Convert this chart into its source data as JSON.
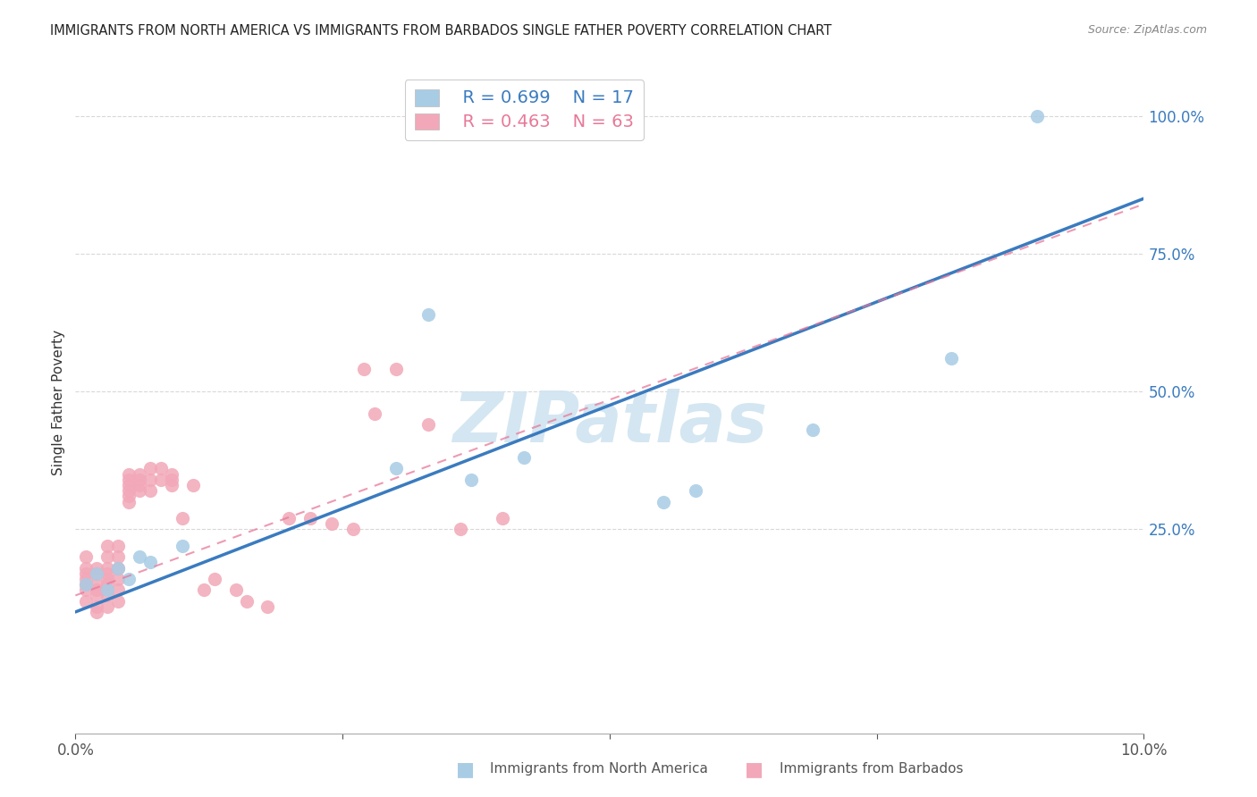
{
  "title": "IMMIGRANTS FROM NORTH AMERICA VS IMMIGRANTS FROM BARBADOS SINGLE FATHER POVERTY CORRELATION CHART",
  "source": "Source: ZipAtlas.com",
  "xlabel_blue": "Immigrants from North America",
  "xlabel_pink": "Immigrants from Barbados",
  "ylabel": "Single Father Poverty",
  "xlim": [
    0.0,
    0.1
  ],
  "ylim": [
    -0.12,
    1.08
  ],
  "xticks": [
    0.0,
    0.025,
    0.05,
    0.075,
    0.1
  ],
  "ytick_positions": [
    0.25,
    0.5,
    0.75,
    1.0
  ],
  "ytick_labels": [
    "25.0%",
    "50.0%",
    "75.0%",
    "100.0%"
  ],
  "legend_r_blue": "R = 0.699",
  "legend_n_blue": "N = 17",
  "legend_r_pink": "R = 0.463",
  "legend_n_pink": "N = 63",
  "blue_scatter_color": "#a8cce4",
  "pink_scatter_color": "#f2a8b8",
  "blue_line_color": "#3a7bbf",
  "pink_line_color": "#e87898",
  "watermark_color": "#d0e4f0",
  "watermark": "ZIPatlas",
  "background_color": "#ffffff",
  "grid_color": "#d8d8d8",
  "blue_points_x": [
    0.001,
    0.002,
    0.003,
    0.004,
    0.005,
    0.006,
    0.007,
    0.01,
    0.03,
    0.033,
    0.037,
    0.042,
    0.055,
    0.058,
    0.069,
    0.082,
    0.09
  ],
  "blue_points_y": [
    0.15,
    0.17,
    0.14,
    0.18,
    0.16,
    0.2,
    0.19,
    0.22,
    0.36,
    0.64,
    0.34,
    0.38,
    0.3,
    0.32,
    0.43,
    0.56,
    1.0
  ],
  "pink_points_x": [
    0.001,
    0.001,
    0.001,
    0.001,
    0.001,
    0.001,
    0.001,
    0.002,
    0.002,
    0.002,
    0.002,
    0.002,
    0.002,
    0.002,
    0.003,
    0.003,
    0.003,
    0.003,
    0.003,
    0.003,
    0.003,
    0.003,
    0.004,
    0.004,
    0.004,
    0.004,
    0.004,
    0.004,
    0.005,
    0.005,
    0.005,
    0.005,
    0.005,
    0.005,
    0.006,
    0.006,
    0.006,
    0.006,
    0.007,
    0.007,
    0.007,
    0.008,
    0.008,
    0.009,
    0.009,
    0.009,
    0.01,
    0.011,
    0.012,
    0.013,
    0.015,
    0.016,
    0.018,
    0.02,
    0.022,
    0.024,
    0.026,
    0.027,
    0.028,
    0.03,
    0.033,
    0.036,
    0.04
  ],
  "pink_points_y": [
    0.15,
    0.17,
    0.18,
    0.16,
    0.14,
    0.2,
    0.12,
    0.15,
    0.17,
    0.18,
    0.13,
    0.11,
    0.14,
    0.1,
    0.16,
    0.17,
    0.15,
    0.13,
    0.11,
    0.18,
    0.2,
    0.22,
    0.16,
    0.18,
    0.2,
    0.22,
    0.14,
    0.12,
    0.32,
    0.34,
    0.33,
    0.3,
    0.35,
    0.31,
    0.33,
    0.34,
    0.35,
    0.32,
    0.32,
    0.34,
    0.36,
    0.34,
    0.36,
    0.33,
    0.35,
    0.34,
    0.27,
    0.33,
    0.14,
    0.16,
    0.14,
    0.12,
    0.11,
    0.27,
    0.27,
    0.26,
    0.25,
    0.54,
    0.46,
    0.54,
    0.44,
    0.25,
    0.27
  ],
  "blue_regline_x": [
    0.0,
    0.1
  ],
  "blue_regline_y": [
    0.1,
    0.85
  ],
  "pink_regline_x": [
    0.0,
    0.1
  ],
  "pink_regline_y": [
    0.13,
    0.84
  ]
}
